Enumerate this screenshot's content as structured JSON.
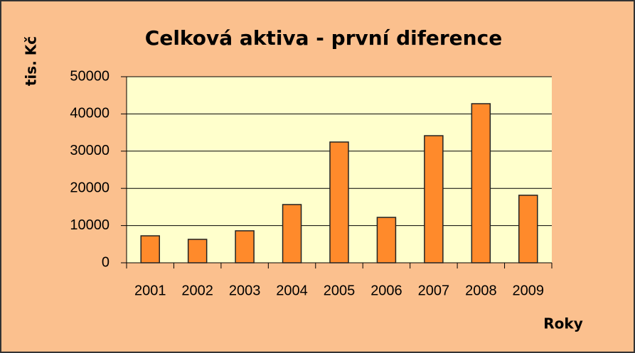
{
  "chart_data": {
    "type": "bar",
    "title": "Celková aktiva - první diference",
    "y_label": "tis. Kč",
    "x_label": "Roky",
    "categories": [
      "2001",
      "2002",
      "2003",
      "2004",
      "2005",
      "2006",
      "2007",
      "2008",
      "2009"
    ],
    "values": [
      7250,
      6300,
      8600,
      15650,
      32450,
      12200,
      34150,
      42750,
      18150
    ],
    "color": "#ff8a2b",
    "ylim": [
      0,
      50000
    ],
    "yticks": [
      0,
      10000,
      20000,
      30000,
      40000,
      50000
    ],
    "grid": true
  }
}
